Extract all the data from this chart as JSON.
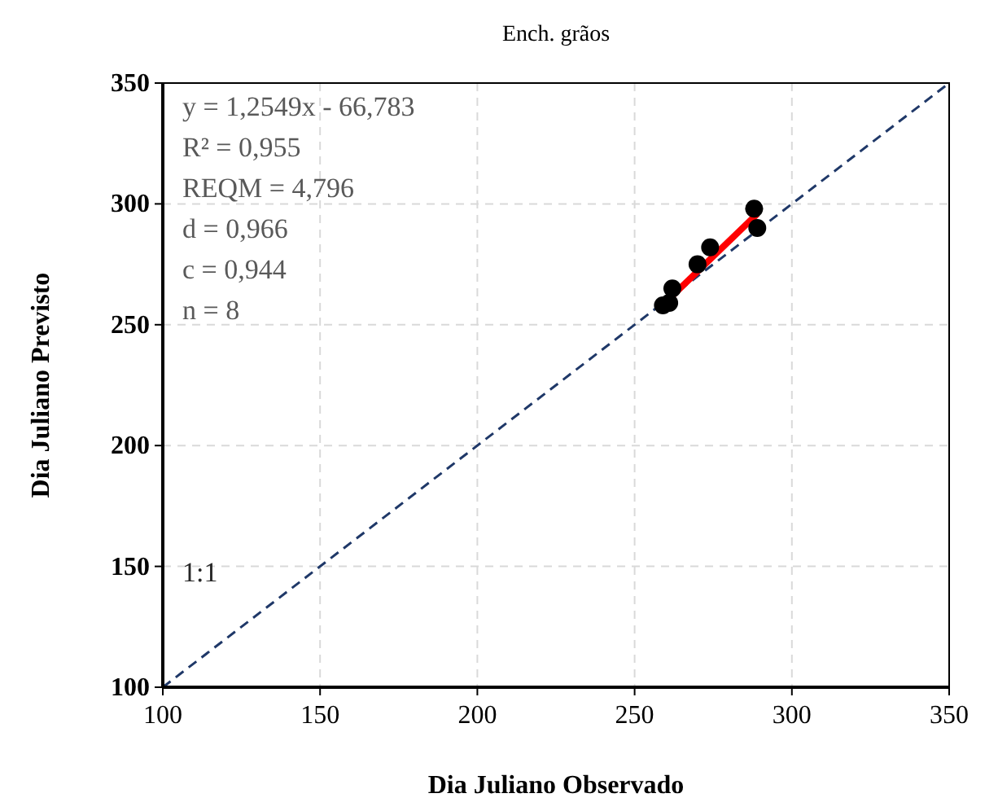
{
  "chart_data": {
    "type": "scatter",
    "title": "Ench. grãos",
    "xlabel": "Dia Juliano Observado",
    "ylabel": "Dia Juliano Previsto",
    "xlim": [
      100,
      350
    ],
    "ylim": [
      100,
      350
    ],
    "xticks": [
      100,
      150,
      200,
      250,
      300,
      350
    ],
    "yticks": [
      100,
      150,
      200,
      250,
      300,
      350
    ],
    "grid": true,
    "series": [
      {
        "type": "line",
        "color": "#1f3868",
        "x": [
          100,
          350
        ],
        "values": [
          100,
          350
        ],
        "line_style": "dashed"
      },
      {
        "type": "line",
        "color": "#ff0000",
        "x": [
          259,
          289
        ],
        "values": [
          258.2,
          295.9
        ],
        "line_style": "solid"
      },
      {
        "color": "#000000",
        "x": [
          288,
          289,
          274,
          270,
          262,
          259,
          261
        ],
        "values": [
          298,
          290,
          282,
          275,
          265,
          258,
          259
        ],
        "marker": "circle"
      }
    ],
    "annotations": [
      "y = 1,2549x - 66,783",
      "R² = 0,955",
      "REQM = 4,796",
      "d = 0,966",
      "c = 0,944",
      "n = 8",
      "1:1"
    ]
  }
}
